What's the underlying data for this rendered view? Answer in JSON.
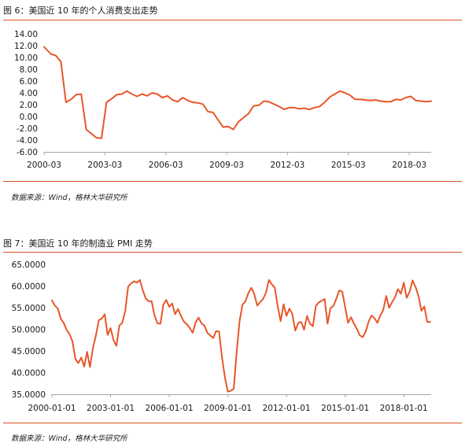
{
  "figures": [
    {
      "title": "图 6：美国近 10 年的个人消费支出走势",
      "source": "数据来源：Wind，格林大华研究所"
    },
    {
      "title": "图 7：美国近 10 年的制造业 PMI 走势",
      "source": "数据来源：Wind，格林大华研究所"
    }
  ],
  "colors": {
    "accent": "#E8562A",
    "axis": "#a6a6a6",
    "rule": "#d9541e"
  },
  "chart_data": [
    {
      "type": "line",
      "title": "",
      "xlabel": "",
      "ylabel": "",
      "ylim": [
        -6,
        14
      ],
      "ytick_labels": [
        "14.00",
        "12.00",
        "10.00",
        "8.00",
        "6.00",
        "4.00",
        "2.00",
        "0.00",
        "-2.00",
        "-4.00",
        "-6.00"
      ],
      "ytick_values": [
        14,
        12,
        10,
        8,
        6,
        4,
        2,
        0,
        -2,
        -4,
        -6
      ],
      "xtick_labels": [
        "2000-03",
        "2003-03",
        "2006-03",
        "2009-03",
        "2012-03",
        "2015-03",
        "2018-03"
      ],
      "xtick_values": [
        2000.17,
        2003.17,
        2006.17,
        2009.17,
        2012.17,
        2015.17,
        2018.17
      ],
      "xlim": [
        2000.17,
        2019.25
      ],
      "grid": false,
      "legend": "none",
      "series": [
        {
          "color": "#E8562A",
          "x": [
            2000.17,
            2000.5,
            2000.75,
            2001.0,
            2001.25,
            2001.5,
            2001.75,
            2002.0,
            2002.25,
            2002.5,
            2002.75,
            2003.0,
            2003.25,
            2003.5,
            2003.75,
            2004.0,
            2004.25,
            2004.5,
            2004.75,
            2005.0,
            2005.25,
            2005.5,
            2005.75,
            2006.0,
            2006.25,
            2006.5,
            2006.75,
            2007.0,
            2007.25,
            2007.5,
            2007.75,
            2008.0,
            2008.25,
            2008.5,
            2008.75,
            2009.0,
            2009.25,
            2009.5,
            2009.75,
            2010.0,
            2010.25,
            2010.5,
            2010.75,
            2011.0,
            2011.25,
            2011.5,
            2011.75,
            2012.0,
            2012.25,
            2012.5,
            2012.75,
            2013.0,
            2013.25,
            2013.5,
            2013.75,
            2014.0,
            2014.25,
            2014.5,
            2014.75,
            2015.0,
            2015.25,
            2015.5,
            2015.75,
            2016.0,
            2016.25,
            2016.5,
            2016.75,
            2017.0,
            2017.25,
            2017.5,
            2017.75,
            2018.0,
            2018.25,
            2018.5,
            2018.75,
            2019.0,
            2019.25
          ],
          "values": [
            11.8,
            10.6,
            10.3,
            9.3,
            2.4,
            2.9,
            3.7,
            3.8,
            -2.2,
            -2.9,
            -3.6,
            -3.7,
            2.4,
            3.0,
            3.7,
            3.8,
            4.3,
            3.8,
            3.4,
            3.8,
            3.5,
            4.0,
            3.8,
            3.2,
            3.5,
            2.8,
            2.5,
            3.2,
            2.7,
            2.4,
            2.3,
            2.1,
            0.8,
            0.7,
            -0.6,
            -1.8,
            -1.7,
            -2.2,
            -0.9,
            -0.2,
            0.5,
            1.8,
            1.9,
            2.6,
            2.5,
            2.1,
            1.7,
            1.2,
            1.5,
            1.5,
            1.3,
            1.4,
            1.2,
            1.5,
            1.7,
            2.4,
            3.3,
            3.8,
            4.3,
            4.0,
            3.6,
            2.9,
            2.9,
            2.8,
            2.7,
            2.8,
            2.6,
            2.5,
            2.5,
            2.9,
            2.8,
            3.2,
            3.4,
            2.7,
            2.6,
            2.5,
            2.6
          ]
        }
      ]
    },
    {
      "type": "line",
      "title": "",
      "xlabel": "",
      "ylabel": "",
      "ylim": [
        35,
        65
      ],
      "ytick_labels": [
        "65.0000",
        "60.0000",
        "55.0000",
        "50.0000",
        "45.0000",
        "40.0000",
        "35.0000"
      ],
      "ytick_values": [
        65,
        60,
        55,
        50,
        45,
        40,
        35
      ],
      "xtick_labels": [
        "2000-01-01",
        "2003-01-01",
        "2006-01-01",
        "2009-01-01",
        "2012-01-01",
        "2015-01-01",
        "2018-01-01"
      ],
      "xtick_values": [
        2000.0,
        2003.0,
        2006.0,
        2009.0,
        2012.0,
        2015.0,
        2018.0
      ],
      "xlim": [
        2000.0,
        2019.4
      ],
      "grid": false,
      "legend": "none",
      "series": [
        {
          "color": "#E8562A",
          "x": [
            2000.0,
            2000.15,
            2000.3,
            2000.45,
            2000.6,
            2000.75,
            2000.9,
            2001.05,
            2001.2,
            2001.35,
            2001.5,
            2001.65,
            2001.8,
            2001.95,
            2002.1,
            2002.25,
            2002.4,
            2002.55,
            2002.7,
            2002.85,
            2003.0,
            2003.15,
            2003.3,
            2003.45,
            2003.6,
            2003.75,
            2003.9,
            2004.05,
            2004.2,
            2004.35,
            2004.5,
            2004.65,
            2004.8,
            2004.95,
            2005.1,
            2005.25,
            2005.4,
            2005.55,
            2005.7,
            2005.85,
            2006.0,
            2006.15,
            2006.3,
            2006.45,
            2006.6,
            2006.75,
            2006.9,
            2007.05,
            2007.2,
            2007.35,
            2007.5,
            2007.65,
            2007.8,
            2007.95,
            2008.1,
            2008.25,
            2008.4,
            2008.55,
            2008.7,
            2008.85,
            2009.0,
            2009.15,
            2009.3,
            2009.45,
            2009.6,
            2009.75,
            2009.9,
            2010.05,
            2010.2,
            2010.35,
            2010.5,
            2010.65,
            2010.8,
            2010.95,
            2011.1,
            2011.25,
            2011.4,
            2011.55,
            2011.7,
            2011.85,
            2012.0,
            2012.15,
            2012.3,
            2012.45,
            2012.6,
            2012.75,
            2012.9,
            2013.05,
            2013.2,
            2013.35,
            2013.5,
            2013.65,
            2013.8,
            2013.95,
            2014.1,
            2014.25,
            2014.4,
            2014.55,
            2014.7,
            2014.85,
            2015.0,
            2015.15,
            2015.3,
            2015.45,
            2015.6,
            2015.75,
            2015.9,
            2016.05,
            2016.2,
            2016.35,
            2016.5,
            2016.65,
            2016.8,
            2016.95,
            2017.1,
            2017.25,
            2017.4,
            2017.55,
            2017.7,
            2017.85,
            2018.0,
            2018.15,
            2018.3,
            2018.45,
            2018.6,
            2018.75,
            2018.9,
            2019.05,
            2019.2,
            2019.35
          ],
          "values": [
            56.7,
            55.5,
            54.8,
            52.5,
            51.5,
            49.9,
            48.9,
            47.2,
            43.2,
            42.2,
            43.5,
            41.4,
            44.8,
            41.3,
            45.8,
            48.6,
            52.1,
            52.5,
            53.5,
            48.7,
            50.3,
            47.5,
            46.2,
            50.9,
            51.5,
            54.3,
            59.9,
            60.6,
            61.1,
            60.8,
            61.4,
            59.0,
            57.1,
            56.5,
            56.5,
            53.2,
            51.4,
            51.3,
            55.7,
            56.8,
            55.2,
            56.0,
            53.5,
            54.7,
            53.1,
            51.8,
            51.2,
            50.3,
            49.2,
            51.6,
            52.7,
            51.4,
            50.9,
            49.2,
            48.6,
            48.0,
            49.6,
            49.5,
            43.5,
            38.9,
            35.6,
            35.8,
            36.3,
            44.8,
            51.9,
            55.7,
            56.5,
            58.4,
            59.6,
            58.2,
            55.5,
            56.3,
            57.0,
            58.5,
            61.4,
            60.4,
            59.6,
            55.3,
            51.9,
            55.8,
            53.1,
            54.8,
            53.5,
            49.7,
            51.5,
            51.7,
            49.9,
            53.1,
            51.3,
            50.7,
            55.4,
            56.2,
            56.6,
            57.0,
            51.3,
            54.9,
            55.4,
            57.1,
            59.0,
            58.7,
            55.1,
            51.5,
            52.8,
            51.3,
            50.1,
            48.6,
            48.2,
            49.5,
            51.8,
            53.2,
            52.6,
            51.5,
            53.2,
            54.5,
            57.7,
            55.0,
            56.3,
            57.4,
            59.3,
            58.2,
            60.8,
            57.3,
            58.7,
            61.3,
            59.8,
            57.7,
            54.3,
            55.3,
            51.7,
            51.7
          ]
        }
      ]
    }
  ]
}
